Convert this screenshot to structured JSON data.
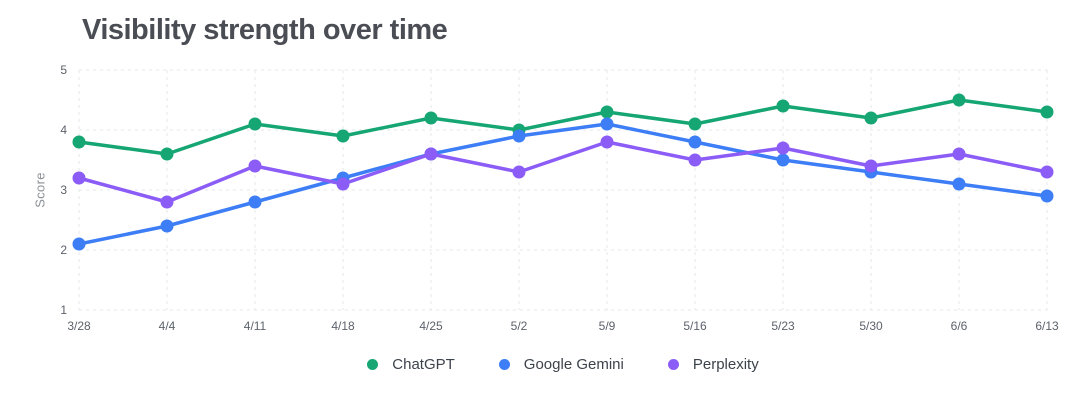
{
  "page": {
    "title": "Visibility strength over time"
  },
  "colors": {
    "title_text": "#4a4e54",
    "axis_text": "#5c626b",
    "y_axis_title_text": "#8a9097",
    "gridline": "#e4e7eb",
    "background": "#ffffff",
    "chatgpt": "#15a673",
    "google_gemini": "#3d7df6",
    "perplexity": "#8b5cf6"
  },
  "chart_data": {
    "type": "line",
    "title": "Visibility strength over time",
    "xlabel": "",
    "ylabel": "Score",
    "ylim": [
      1,
      5
    ],
    "yticks": [
      1,
      2,
      3,
      4,
      5
    ],
    "grid": true,
    "grid_style": "dashed",
    "legend_position": "bottom",
    "marker": "circle",
    "categories": [
      "3/28",
      "4/4",
      "4/11",
      "4/18",
      "4/25",
      "5/2",
      "5/9",
      "5/16",
      "5/23",
      "5/30",
      "6/6",
      "6/13"
    ],
    "series": [
      {
        "name": "ChatGPT",
        "color": "#15a673",
        "values": [
          3.8,
          3.6,
          4.1,
          3.9,
          4.2,
          4.0,
          4.3,
          4.1,
          4.4,
          4.2,
          4.5,
          4.3
        ]
      },
      {
        "name": "Google Gemini",
        "color": "#3d7df6",
        "values": [
          2.1,
          2.4,
          2.8,
          3.2,
          3.6,
          3.9,
          4.1,
          3.8,
          3.5,
          3.3,
          3.1,
          2.9
        ]
      },
      {
        "name": "Perplexity",
        "color": "#8b5cf6",
        "values": [
          3.2,
          2.8,
          3.4,
          3.1,
          3.6,
          3.3,
          3.8,
          3.5,
          3.7,
          3.4,
          3.6,
          3.3
        ]
      }
    ]
  }
}
